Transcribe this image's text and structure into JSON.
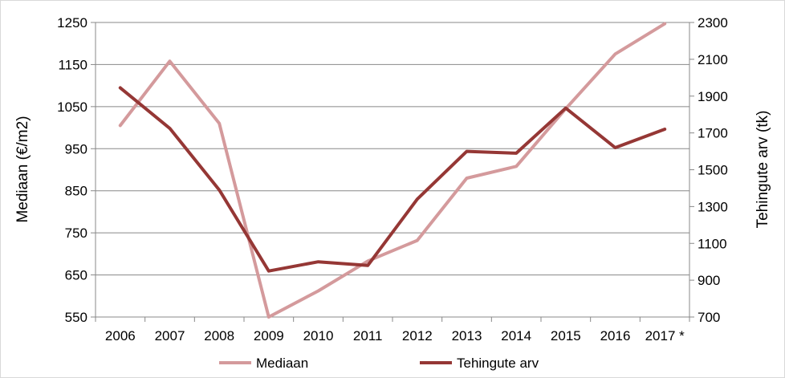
{
  "chart_data": {
    "type": "line",
    "categories": [
      "2006",
      "2007",
      "2008",
      "2009",
      "2010",
      "2011",
      "2012",
      "2013",
      "2014",
      "2015",
      "2016",
      "2017 *"
    ],
    "series": [
      {
        "name": "Mediaan",
        "axis": "left",
        "color": "#d49a9c",
        "values": [
          1005,
          1158,
          1010,
          550,
          612,
          683,
          732,
          880,
          908,
          1045,
          1175,
          1247
        ]
      },
      {
        "name": "Tehingute arv",
        "axis": "right",
        "color": "#953735",
        "values": [
          1945,
          1725,
          1390,
          950,
          1000,
          980,
          1340,
          1600,
          1590,
          1835,
          1620,
          1720
        ]
      }
    ],
    "ylabel": "Mediaan (€/m2)",
    "ylabel_right": "Tehingute arv (tk)",
    "ylim": [
      550,
      1250
    ],
    "ylim_right": [
      700,
      2300
    ],
    "yticks": [
      550,
      650,
      750,
      850,
      950,
      1050,
      1150,
      1250
    ],
    "yticks_right": [
      700,
      900,
      1100,
      1300,
      1500,
      1700,
      1900,
      2100,
      2300
    ],
    "grid": true,
    "legend_position": "bottom",
    "gridline_color": "#888888"
  }
}
